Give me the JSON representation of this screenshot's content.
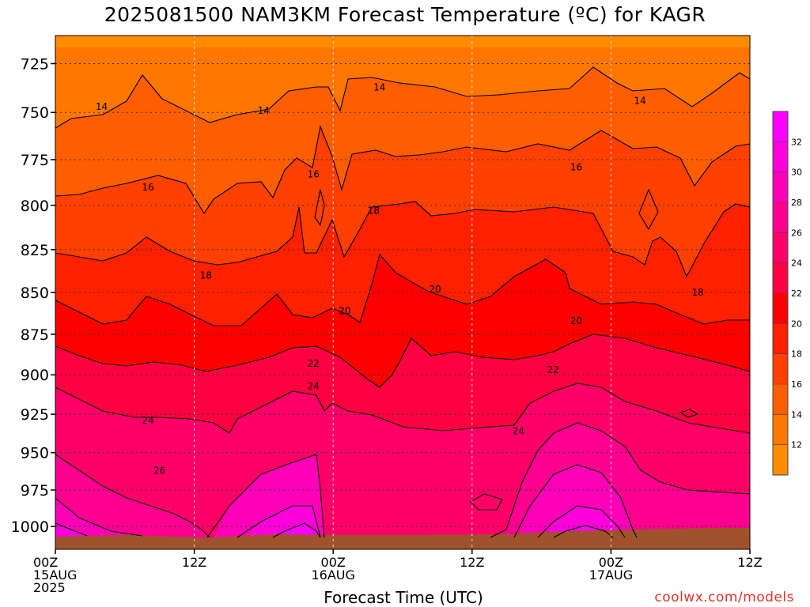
{
  "page": {
    "title": "2025081500 NAM3KM Forecast Temperature (ºC) for KAGR",
    "credit": "coolwx.com/models"
  },
  "chart_data": {
    "type": "contour",
    "title": "2025081500 NAM3KM Forecast Temperature (ºC) for KAGR",
    "xlabel": "Forecast Time (UTC)",
    "ylabel": "",
    "y_scale": "log-pressure",
    "y_inverted": true,
    "ylim": [
      1016,
      711
    ],
    "xlim_hours": [
      0,
      60
    ],
    "grid": true,
    "x_ticks": [
      {
        "hour": 0,
        "lines": [
          "00Z",
          "15AUG",
          "2025"
        ]
      },
      {
        "hour": 12,
        "lines": [
          "12Z"
        ]
      },
      {
        "hour": 24,
        "lines": [
          "00Z",
          "16AUG"
        ]
      },
      {
        "hour": 36,
        "lines": [
          "12Z"
        ]
      },
      {
        "hour": 48,
        "lines": [
          "00Z",
          "17AUG"
        ]
      },
      {
        "hour": 60,
        "lines": [
          "12Z"
        ]
      }
    ],
    "y_ticks": [
      725,
      750,
      775,
      800,
      825,
      850,
      875,
      900,
      925,
      950,
      975,
      1000
    ],
    "colorbar": {
      "levels": [
        10,
        12,
        14,
        16,
        18,
        20,
        22,
        24,
        26,
        28,
        30,
        32,
        34
      ],
      "labels": [
        "12",
        "14",
        "16",
        "18",
        "20",
        "22",
        "24",
        "26",
        "28",
        "30",
        "32"
      ],
      "colors": [
        "#ff8c00",
        "#ff7700",
        "#ff5e00",
        "#ff4000",
        "#ff2000",
        "#ff0000",
        "#ff0040",
        "#ff0068",
        "#ff0090",
        "#ff00b8",
        "#ff00dd",
        "#ff00ff"
      ]
    },
    "contour_labels": [
      {
        "text": "14",
        "hour": 4.0,
        "p": 747
      },
      {
        "text": "14",
        "hour": 18.0,
        "p": 749
      },
      {
        "text": "14",
        "hour": 28.0,
        "p": 737
      },
      {
        "text": "14",
        "hour": 50.5,
        "p": 744
      },
      {
        "text": "16",
        "hour": 8.0,
        "p": 790
      },
      {
        "text": "16",
        "hour": 22.3,
        "p": 783
      },
      {
        "text": "16",
        "hour": 45.0,
        "p": 779
      },
      {
        "text": "18",
        "hour": 27.5,
        "p": 803
      },
      {
        "text": "18",
        "hour": 13.0,
        "p": 840
      },
      {
        "text": "18",
        "hour": 55.5,
        "p": 850
      },
      {
        "text": "20",
        "hour": 25.0,
        "p": 861
      },
      {
        "text": "20",
        "hour": 32.8,
        "p": 848
      },
      {
        "text": "20",
        "hour": 45.0,
        "p": 867
      },
      {
        "text": "22",
        "hour": 22.3,
        "p": 893
      },
      {
        "text": "22",
        "hour": 43.0,
        "p": 897
      },
      {
        "text": "24",
        "hour": 22.3,
        "p": 907
      },
      {
        "text": "24",
        "hour": 8.0,
        "p": 929
      },
      {
        "text": "24",
        "hour": 40.0,
        "p": 936
      },
      {
        "text": "26",
        "hour": 9.0,
        "p": 962
      }
    ]
  }
}
